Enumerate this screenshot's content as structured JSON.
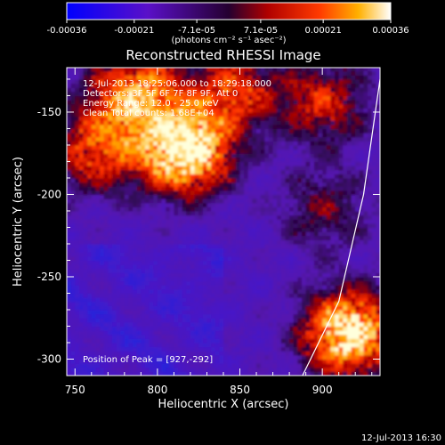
{
  "chart_data": {
    "type": "heatmap",
    "title": "Reconstructed RHESSI Image",
    "xlabel": "Heliocentric X (arcsec)",
    "ylabel": "Heliocentric Y (arcsec)",
    "xlim": [
      745,
      935
    ],
    "ylim": [
      -310,
      -123
    ],
    "x_ticks": [
      "750",
      "800",
      "850",
      "900"
    ],
    "y_ticks": [
      "-150",
      "-200",
      "-250",
      "-300"
    ],
    "colorbar": {
      "range": [
        -0.00036,
        0.00036
      ],
      "tick_labels": [
        "-0.00036",
        "-0.00021",
        "-7.1e-05",
        "7.1e-05",
        "0.00021",
        "0.00036"
      ],
      "unit_label": "(photons cm⁻² s⁻¹ asec⁻²)",
      "colormap": "blue-purple-red-yellow-white"
    },
    "info_lines": [
      "12-Jul-2013 18:25:06.000 to 18:29:18.000",
      "Detectors: 3F 5F 6F 7F 8F 9F, Att 0",
      "Energy Range: 12.0 - 25.0 keV",
      "Clean     Total counts: 1.68E+04"
    ],
    "peak_label": "Position of Peak = [927,-292]",
    "peak": [
      927,
      -292
    ],
    "limb_curve": [
      [
        888,
        -310
      ],
      [
        910,
        -265
      ],
      [
        925,
        -200
      ],
      [
        935,
        -130
      ]
    ],
    "bright_regions": [
      {
        "x": 815,
        "y": -175,
        "strength": 1.0
      },
      {
        "x": 785,
        "y": -140,
        "strength": 0.7
      },
      {
        "x": 915,
        "y": -285,
        "strength": 0.95
      },
      {
        "x": 900,
        "y": -145,
        "strength": 0.45
      },
      {
        "x": 760,
        "y": -175,
        "strength": 0.5
      },
      {
        "x": 845,
        "y": -138,
        "strength": 0.5
      },
      {
        "x": 900,
        "y": -210,
        "strength": 0.3
      }
    ]
  },
  "footer": {
    "timestamp": "12-Jul-2013 16:30"
  }
}
